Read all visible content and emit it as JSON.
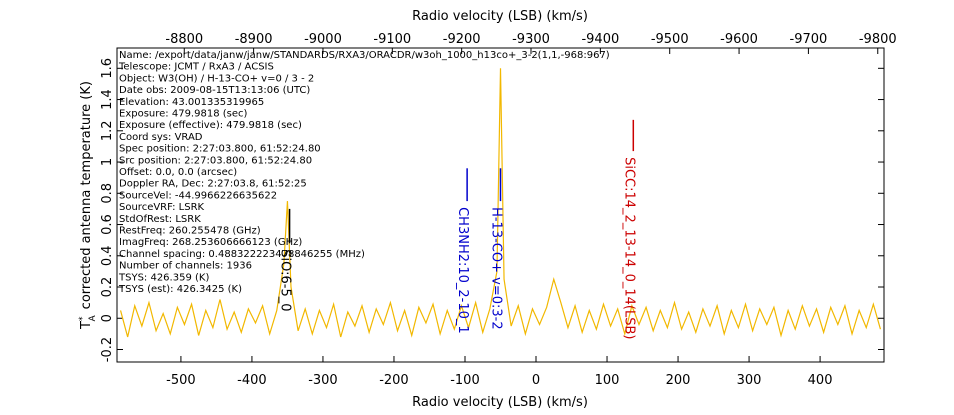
{
  "chart_data": {
    "type": "line",
    "x_label": "Radio velocity (LSB) (km/s)",
    "x2_label": "Radio velocity (LSB) (km/s)",
    "y_label": {
      "symbol": "T",
      "sup": "*",
      "sub": "A",
      "text": "corrected antenna temperature (K)"
    },
    "xlim": [
      -590,
      490
    ],
    "xticks": [
      -500,
      -400,
      -300,
      -200,
      -100,
      0,
      100,
      200,
      300,
      400
    ],
    "x2lim": [
      -8703,
      -9809
    ],
    "x2ticks": [
      -8800,
      -8900,
      -9000,
      -9100,
      -9200,
      -9300,
      -9400,
      -9500,
      -9600,
      -9700,
      -9800
    ],
    "ylim": [
      -0.28,
      1.73
    ],
    "yticks": [
      -0.2,
      0,
      0.2,
      0.4,
      0.6,
      0.8,
      1,
      1.2,
      1.4,
      1.6
    ],
    "color": "#f2b800",
    "x": [
      -585,
      -575,
      -565,
      -555,
      -545,
      -535,
      -525,
      -515,
      -505,
      -495,
      -485,
      -475,
      -465,
      -455,
      -445,
      -435,
      -425,
      -415,
      -405,
      -395,
      -385,
      -375,
      -365,
      -355,
      -350,
      -345,
      -335,
      -325,
      -315,
      -305,
      -295,
      -285,
      -275,
      -265,
      -255,
      -245,
      -235,
      -225,
      -215,
      -205,
      -195,
      -185,
      -175,
      -165,
      -155,
      -145,
      -135,
      -125,
      -115,
      -105,
      -95,
      -85,
      -75,
      -65,
      -55,
      -50,
      -45,
      -35,
      -25,
      -15,
      -5,
      5,
      15,
      25,
      35,
      45,
      55,
      65,
      75,
      85,
      95,
      105,
      115,
      125,
      135,
      145,
      155,
      165,
      175,
      185,
      195,
      205,
      215,
      225,
      235,
      245,
      255,
      265,
      275,
      285,
      295,
      305,
      315,
      325,
      335,
      345,
      355,
      365,
      375,
      385,
      395,
      405,
      415,
      425,
      435,
      445,
      455,
      465,
      475,
      485
    ],
    "values": [
      0.05,
      -0.12,
      0.08,
      -0.05,
      0.1,
      -0.08,
      0.03,
      -0.1,
      0.07,
      -0.04,
      0.09,
      -0.11,
      0.05,
      -0.06,
      0.12,
      -0.07,
      0.04,
      -0.09,
      0.06,
      -0.03,
      0.08,
      -0.1,
      0.05,
      0.35,
      0.75,
      0.2,
      -0.08,
      0.06,
      -0.1,
      0.05,
      -0.06,
      0.09,
      -0.12,
      0.04,
      -0.05,
      0.08,
      -0.09,
      0.06,
      -0.04,
      0.1,
      -0.08,
      0.05,
      -0.11,
      0.07,
      -0.03,
      0.09,
      -0.1,
      0.05,
      -0.07,
      0.08,
      -0.06,
      0.1,
      -0.09,
      0.06,
      0.3,
      1.6,
      0.25,
      -0.05,
      0.08,
      -0.1,
      0.06,
      -0.04,
      0.07,
      0.25,
      0.1,
      -0.06,
      0.08,
      -0.09,
      0.05,
      -0.07,
      0.09,
      -0.05,
      0.06,
      -0.1,
      0.08,
      -0.04,
      0.07,
      -0.08,
      0.05,
      -0.06,
      0.1,
      -0.07,
      0.04,
      -0.09,
      0.06,
      -0.05,
      0.08,
      -0.1,
      0.05,
      -0.06,
      0.09,
      -0.08,
      0.06,
      -0.04,
      0.07,
      -0.11,
      0.05,
      -0.07,
      0.08,
      -0.05,
      0.06,
      -0.09,
      0.07,
      -0.04,
      0.08,
      -0.1,
      0.05,
      -0.06,
      0.09,
      -0.07
    ],
    "spectral_lines": [
      {
        "label": "SiO:6-5_0",
        "color": "#000000",
        "x": -347,
        "y_top": 0.7,
        "y_bottom": 0.48
      },
      {
        "label": "CH3NH2:10_2-10_1",
        "color": "#0000cc",
        "x": -97,
        "y_top": 0.96,
        "y_bottom": 0.75
      },
      {
        "label": "H-13-CO+ v=0:3-2",
        "color": "#0000cc",
        "x": -50,
        "y_top": 0.96,
        "y_bottom": 0.75
      },
      {
        "label": "SiCC:14_2_13-14_0_14(LSB)",
        "color": "#cc0000",
        "x": 137,
        "y_top": 1.27,
        "y_bottom": 1.07
      }
    ],
    "header_lines": [
      "Name: /export/data/janw/janw/STANDARDS/RXA3/ORACDR/w3oh_1000_h13co+_3-2(1,1,-968:967)",
      "Telescope: JCMT / RxA3 / ACSIS",
      "Object: W3(OH) / H-13-CO+ v=0 / 3 - 2",
      "Date obs: 2009-08-15T13:13:06 (UTC)",
      "Elevation: 43.001335319965",
      "Exposure: 479.9818 (sec)",
      "Exposure (effective): 479.9818 (sec)",
      "Coord sys: VRAD",
      "Spec position: 2:27:03.800, 61:52:24.80",
      "Src position: 2:27:03.800, 61:52:24.80",
      "Offset: 0.0, 0.0 (arcsec)",
      "Doppler RA, Dec: 2:27:03.8, 61:52:25",
      "SourceVel: -44.9966226635622",
      "SourceVRF: LSRK",
      "StdOfRest: LSRK",
      "RestFreq: 260.255478 (GHz)",
      "ImagFreq: 268.253606666123 (GHz)",
      "Channel spacing: 0.488322223478846255 (MHz)",
      "Number of channels: 1936",
      "TSYS: 426.359 (K)",
      "TSYS (est): 426.3425 (K)"
    ]
  }
}
